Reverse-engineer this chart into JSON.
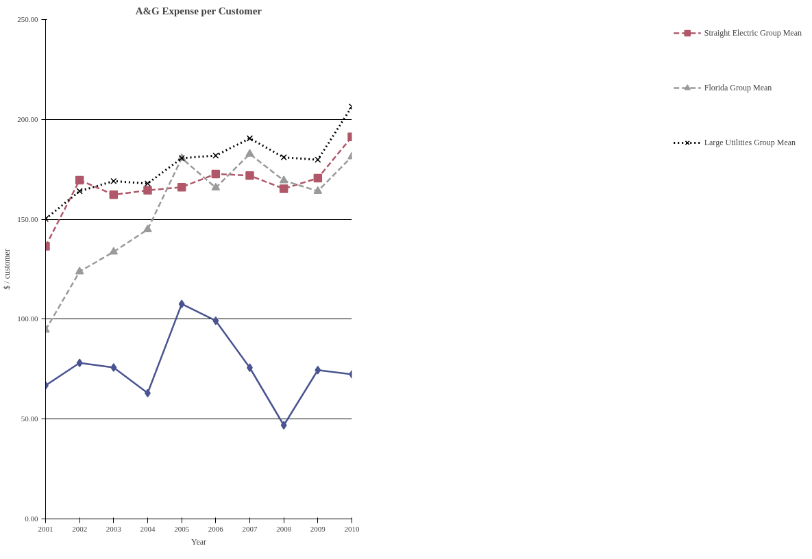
{
  "chart_data": {
    "type": "line",
    "title": "A&G Expense per Customer",
    "xlabel": "Year",
    "ylabel": "$ / customer",
    "x": [
      2001,
      2002,
      2003,
      2004,
      2005,
      2006,
      2007,
      2008,
      2009,
      2010
    ],
    "xlim": [
      2001,
      2010
    ],
    "xticks": [
      2001,
      2002,
      2003,
      2004,
      2005,
      2006,
      2007,
      2008,
      2009,
      2010
    ],
    "ylim": [
      0,
      250
    ],
    "yticks": [
      {
        "value": 0,
        "label": "0.00"
      },
      {
        "value": 50,
        "label": "50.00"
      },
      {
        "value": 100,
        "label": "100.00"
      },
      {
        "value": 150,
        "label": "150.00"
      },
      {
        "value": 200,
        "label": "200.00"
      },
      {
        "value": 250,
        "label": "250.00"
      }
    ],
    "grid": "y",
    "legend": "right",
    "series": [
      {
        "color": "#4a5490",
        "marker": "diamond",
        "line_style": "solid",
        "values": [
          66.8,
          78.1,
          75.8,
          63.0,
          107.6,
          99.2,
          75.7,
          46.9,
          74.5,
          72.4
        ]
      },
      {
        "name": "Straight Electric Group Mean",
        "color": "#b0586a",
        "marker": "square",
        "line_style": "dashed",
        "values": [
          136.5,
          169.6,
          162.3,
          164.5,
          166.1,
          172.7,
          171.9,
          165.3,
          170.6,
          191.3
        ]
      },
      {
        "name": "Florida Group Mean",
        "color": "#9a9a9a",
        "marker": "triangle",
        "line_style": "dashed",
        "values": [
          94.6,
          123.8,
          133.7,
          144.9,
          180.6,
          165.8,
          182.7,
          169.4,
          164.1,
          181.4
        ]
      },
      {
        "name": "Large Utilities Group Mean",
        "color": "#000000",
        "marker": "cross",
        "line_style": "dotted",
        "values": [
          150.2,
          164.1,
          169.1,
          167.9,
          180.6,
          181.9,
          190.5,
          181.0,
          179.8,
          206.4
        ]
      }
    ]
  }
}
